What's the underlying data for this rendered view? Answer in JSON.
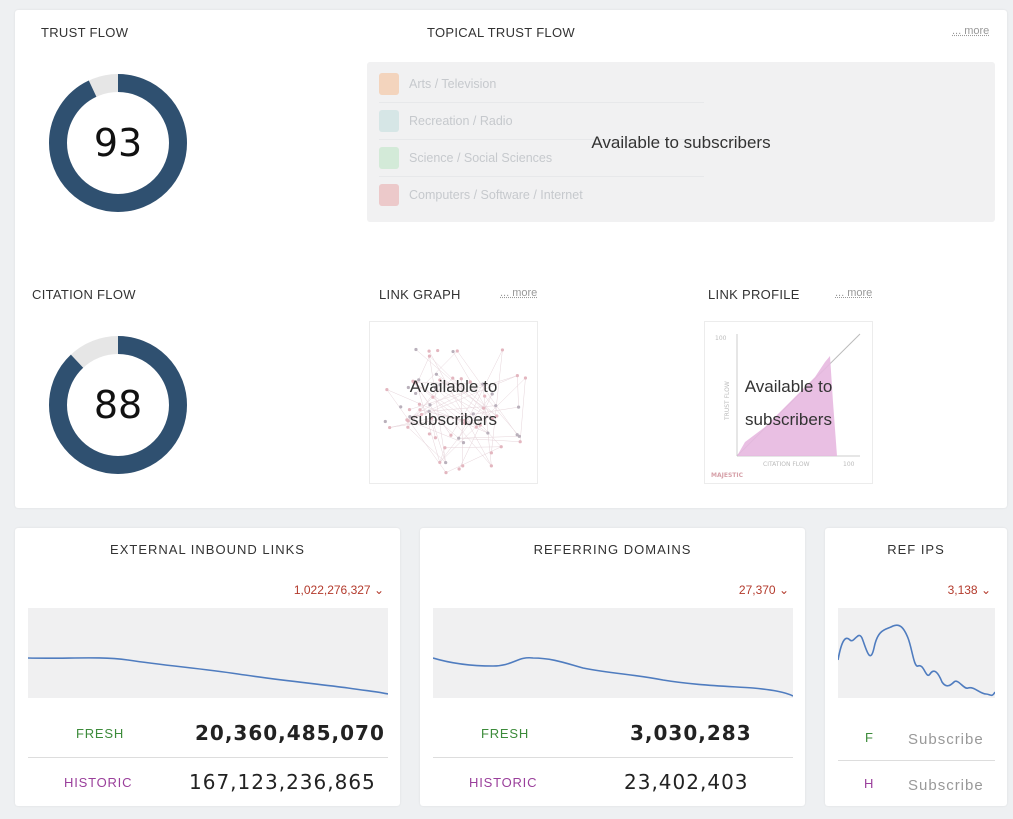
{
  "trust_flow": {
    "title": "TRUST FLOW",
    "value": 93
  },
  "topical_trust_flow": {
    "title": "TOPICAL TRUST FLOW",
    "more": "... more",
    "overlay": "Available to subscribers",
    "topics": [
      {
        "label": "Arts / Television",
        "color": "#f3d4bd"
      },
      {
        "label": "Recreation / Radio",
        "color": "#d6e6e6"
      },
      {
        "label": "Science / Social Sciences",
        "color": "#d3ead8"
      },
      {
        "label": "Computers / Software / Internet",
        "color": "#ecc9ca"
      }
    ]
  },
  "citation_flow": {
    "title": "CITATION FLOW",
    "value": 88
  },
  "link_graph": {
    "title": "LINK GRAPH",
    "more": "... more",
    "overlay_line1": "Available to",
    "overlay_line2": "subscribers"
  },
  "link_profile": {
    "title": "LINK PROFILE",
    "more": "... more",
    "overlay_line1": "Available to",
    "overlay_line2": "subscribers",
    "y_axis": "TRUST FLOW",
    "x_axis": "CITATION FLOW",
    "y_max": "100",
    "x_max": "100",
    "brand": "MAJESTIC"
  },
  "external_links": {
    "title": "EXTERNAL INBOUND LINKS",
    "total": "1,022,276,327",
    "fresh_label": "FRESH",
    "fresh_value": "20,360,485,070",
    "historic_label": "HISTORIC",
    "historic_value": "167,123,236,865"
  },
  "referring_domains": {
    "title": "REFERRING DOMAINS",
    "total": "27,370",
    "fresh_label": "FRESH",
    "fresh_value": "3,030,283",
    "historic_label": "HISTORIC",
    "historic_value": "23,402,403"
  },
  "ref_ips": {
    "title": "REF IPS",
    "total": "3,138",
    "fresh_label": "F",
    "fresh_value": "Subscribe",
    "historic_label": "H",
    "historic_value": "Subscribe"
  },
  "colors": {
    "donut": "#2f5070",
    "donut_track": "#e6e6e6",
    "accent_red": "#b33a2c",
    "spark_line": "#4f7cbf"
  }
}
